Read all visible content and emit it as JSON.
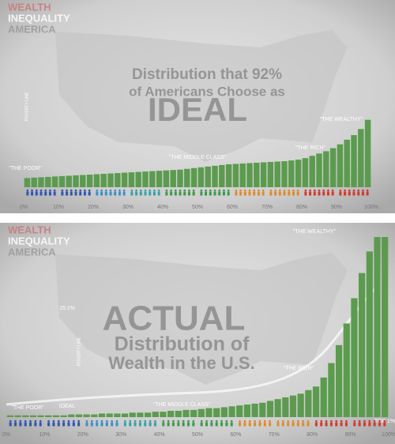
{
  "chart_data": [
    {
      "type": "bar",
      "brand": [
        "WEALTH",
        "INEQUALITY",
        "AMERICA"
      ],
      "title_lines": [
        "Distribution that 92%",
        "of Americans Choose as",
        "IDEAL"
      ],
      "annotations": [
        "\"THE POOR\"",
        "\"THE MIDDLE CLASS\"",
        "\"THE RICH\"",
        "\"THE WEALTHY\"",
        "POVERTY LINE"
      ],
      "color": "#5c9b4f",
      "x": [
        1,
        3,
        5,
        7,
        9,
        11,
        13,
        15,
        17,
        19,
        21,
        23,
        25,
        27,
        29,
        31,
        33,
        35,
        37,
        39,
        41,
        43,
        45,
        47,
        49,
        51,
        53,
        55,
        57,
        59,
        61,
        63,
        65,
        67,
        69,
        71,
        73,
        75,
        77,
        79,
        81,
        83,
        85,
        87,
        89,
        91,
        93,
        95,
        97,
        99
      ],
      "values": [
        12,
        12.5,
        13,
        13.5,
        14,
        14.5,
        15,
        15.5,
        16,
        16.5,
        17,
        17.5,
        18,
        18.5,
        19,
        19.5,
        20,
        20.5,
        21,
        21.5,
        22,
        22.5,
        23,
        24,
        25,
        26,
        27,
        28,
        29,
        30,
        30.5,
        31,
        31.5,
        32,
        32.5,
        33,
        33.5,
        34,
        35,
        36,
        38,
        41,
        44,
        47,
        51,
        56,
        62,
        68,
        76,
        88
      ],
      "xlim": [
        0,
        100
      ],
      "ylim": [
        0,
        100
      ],
      "xticks": [
        {
          "value": 0,
          "label": "0%"
        },
        {
          "value": 10,
          "label": "10%"
        },
        {
          "value": 20,
          "label": "20%"
        },
        {
          "value": 30,
          "label": "30%"
        },
        {
          "value": 40,
          "label": "40%"
        },
        {
          "value": 50,
          "label": "50%"
        },
        {
          "value": 60,
          "label": "60%"
        },
        {
          "value": 70,
          "label": "70%"
        },
        {
          "value": 80,
          "label": "80%"
        },
        {
          "value": 90,
          "label": "90%"
        },
        {
          "value": 100,
          "label": "100%"
        }
      ]
    },
    {
      "type": "bar",
      "brand": [
        "WEALTH",
        "INEQUALITY",
        "AMERICA"
      ],
      "title_lines": [
        "ACTUAL",
        "Distribution of",
        "Wealth in the U.S."
      ],
      "annotations": [
        "\"THE WEALTHY\"",
        "\"THE RICH\"",
        "\"THE MIDDLE CLASS\"",
        "\"THE POOR\"",
        "IDEAL",
        "15.1%",
        "TOP 1%",
        "POVERTY LINE"
      ],
      "color": "#5c9b4f",
      "x": [
        1,
        3,
        5,
        7,
        9,
        11,
        13,
        15,
        17,
        19,
        21,
        23,
        25,
        27,
        29,
        31,
        33,
        35,
        37,
        39,
        41,
        43,
        45,
        47,
        49,
        51,
        53,
        55,
        57,
        59,
        61,
        63,
        65,
        67,
        69,
        71,
        73,
        75,
        77,
        79,
        81,
        83,
        85,
        87,
        89,
        91,
        93,
        95,
        97,
        99
      ],
      "values": [
        1,
        1,
        1,
        1,
        1,
        1,
        1,
        1,
        1.5,
        1.5,
        1.5,
        1.5,
        2,
        2,
        2,
        2,
        2.5,
        2.5,
        2.5,
        3,
        3,
        3.5,
        3.5,
        4,
        4,
        4.5,
        5,
        5,
        5.5,
        6,
        6.5,
        7,
        7.5,
        8,
        9,
        10,
        11,
        12,
        13,
        15,
        17,
        22,
        30,
        40,
        52,
        66,
        80,
        92,
        100,
        100
      ],
      "xlim": [
        0,
        100
      ],
      "ylim": [
        0,
        100
      ],
      "xticks": [
        {
          "value": 0,
          "label": "0%"
        },
        {
          "value": 10,
          "label": "10%"
        },
        {
          "value": 20,
          "label": "20%"
        },
        {
          "value": 30,
          "label": "30%"
        },
        {
          "value": 40,
          "label": "40%"
        },
        {
          "value": 50,
          "label": "50%"
        },
        {
          "value": 60,
          "label": "60%"
        },
        {
          "value": 70,
          "label": "70%"
        },
        {
          "value": 80,
          "label": "80%"
        },
        {
          "value": 90,
          "label": "90%"
        },
        {
          "value": 100,
          "label": "100%"
        }
      ]
    }
  ]
}
